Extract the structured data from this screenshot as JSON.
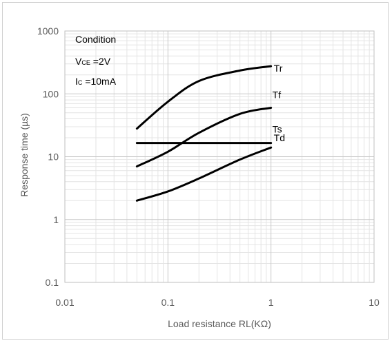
{
  "chart_data": {
    "type": "line",
    "x_scale": "log",
    "y_scale": "log",
    "xlim": [
      0.01,
      10
    ],
    "ylim": [
      0.1,
      1000
    ],
    "x_ticks": [
      0.01,
      0.1,
      1,
      10
    ],
    "x_tick_labels": [
      "0.01",
      "0.1",
      "1",
      "10"
    ],
    "y_ticks": [
      0.1,
      1,
      10,
      100,
      1000
    ],
    "y_tick_labels": [
      "0.1",
      "1",
      "10",
      "100",
      "1000"
    ],
    "xlabel": "Load resistance RL(KΩ)",
    "ylabel": "Response time (µs)",
    "grid": true,
    "line_color": "#000000",
    "condition": {
      "title": "Condition",
      "vce_main": "V",
      "vce_sub": "CE",
      "vce_value": " =2V",
      "ic_main": "I",
      "ic_sub": "C",
      "ic_value": " =10mA"
    },
    "series": [
      {
        "name": "Tr",
        "x": [
          0.05,
          0.1,
          0.2,
          0.5,
          1.0
        ],
        "y": [
          28,
          75,
          160,
          235,
          275
        ]
      },
      {
        "name": "Tf",
        "x": [
          0.05,
          0.1,
          0.2,
          0.5,
          1.0
        ],
        "y": [
          7,
          12,
          24,
          48,
          60
        ]
      },
      {
        "name": "Ts",
        "x": [
          0.05,
          1.0
        ],
        "y": [
          16.5,
          16.5
        ]
      },
      {
        "name": "Td",
        "x": [
          0.05,
          0.1,
          0.2,
          0.5,
          1.0
        ],
        "y": [
          2,
          2.8,
          4.5,
          9,
          14
        ]
      }
    ]
  }
}
